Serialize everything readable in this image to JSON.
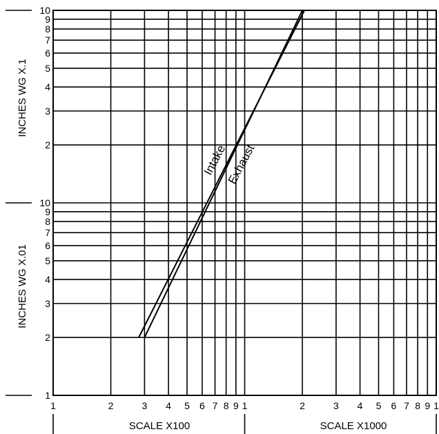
{
  "chart_data": {
    "type": "line",
    "x_scale": "log",
    "y_scale": "log",
    "x_range": [
      100,
      10000
    ],
    "y_range": [
      0.01,
      1
    ],
    "grid": true,
    "x_tick_labels": [
      "1",
      "2",
      "3",
      "4",
      "5",
      "6",
      "7",
      "8",
      "9",
      "1",
      "2",
      "3",
      "4",
      "5",
      "6",
      "7",
      "8",
      "9",
      "1"
    ],
    "y_tick_labels_lower": [
      "1",
      "2",
      "3",
      "4",
      "5",
      "6",
      "7",
      "8",
      "9",
      "10"
    ],
    "y_tick_labels_upper": [
      "10",
      "9",
      "8",
      "7",
      "6",
      "5",
      "4",
      "3",
      "2"
    ],
    "x_axis_titles": [
      "SCALE X100",
      "SCALE X1000"
    ],
    "y_axis_titles": [
      "INCHES WG X.1",
      "INCHES WG X.01"
    ],
    "series": [
      {
        "name": "Intake",
        "x": [
          280,
          2050
        ],
        "y": [
          0.02,
          1.0
        ]
      },
      {
        "name": "Exhaust",
        "x": [
          300,
          2000
        ],
        "y": [
          0.02,
          1.0
        ]
      }
    ]
  }
}
